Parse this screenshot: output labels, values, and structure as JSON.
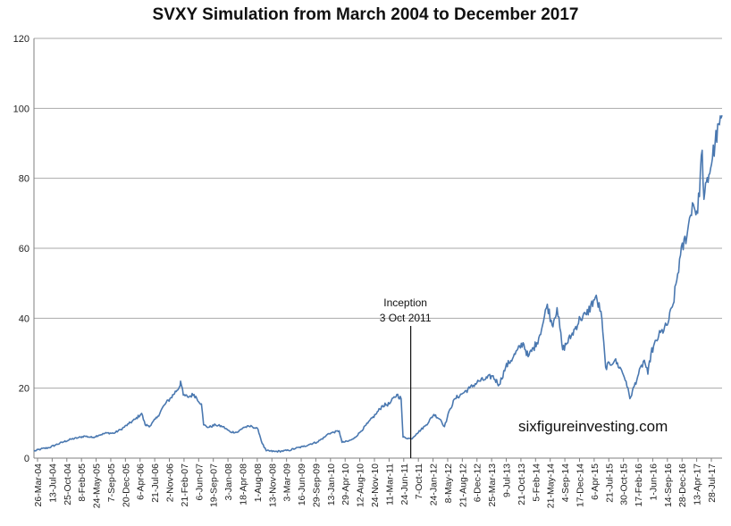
{
  "chart_data": {
    "type": "line",
    "title": "SVXY Simulation from March 2004 to December 2017",
    "xlabel": "",
    "ylabel": "",
    "ylim": [
      0,
      120
    ],
    "yticks": [
      0,
      20,
      40,
      60,
      80,
      100,
      120
    ],
    "grid": "horizontal",
    "line_color": "#4a78b0",
    "x_tick_labels": [
      "26-Mar-04",
      "13-Jul-04",
      "25-Oct-04",
      "8-Feb-05",
      "24-May-05",
      "7-Sep-05",
      "20-Dec-05",
      "6-Apr-06",
      "21-Jul-06",
      "2-Nov-06",
      "21-Feb-07",
      "6-Jun-07",
      "19-Sep-07",
      "3-Jan-08",
      "18-Apr-08",
      "1-Aug-08",
      "13-Nov-08",
      "3-Mar-09",
      "16-Jun-09",
      "29-Sep-09",
      "13-Jan-10",
      "29-Apr-10",
      "12-Aug-10",
      "24-Nov-10",
      "11-Mar-11",
      "24-Jun-11",
      "7-Oct-11",
      "24-Jan-12",
      "8-May-12",
      "21-Aug-12",
      "6-Dec-12",
      "25-Mar-13",
      "9-Jul-13",
      "21-Oct-13",
      "5-Feb-14",
      "21-May-14",
      "4-Sep-14",
      "17-Dec-14",
      "6-Apr-15",
      "21-Jul-15",
      "30-Oct-15",
      "17-Feb-16",
      "1-Jun-16",
      "14-Sep-16",
      "28-Dec-16",
      "13-Apr-17",
      "28-Jul-17"
    ],
    "series": [
      {
        "x": [
          "2004-03-26",
          "2004-05-15",
          "2004-07-13",
          "2004-09-01",
          "2004-10-25",
          "2004-12-20",
          "2005-02-08",
          "2005-04-01",
          "2005-05-24",
          "2005-07-15",
          "2005-09-07",
          "2005-10-28",
          "2005-12-20",
          "2006-02-15",
          "2006-04-06",
          "2006-05-20",
          "2006-06-15",
          "2006-07-21",
          "2006-09-15",
          "2006-11-02",
          "2006-12-20",
          "2007-02-21",
          "2007-02-28",
          "2007-03-20",
          "2007-04-20",
          "2007-06-06",
          "2007-07-30",
          "2007-08-15",
          "2007-09-19",
          "2007-11-10",
          "2008-01-03",
          "2008-02-25",
          "2008-04-18",
          "2008-06-01",
          "2008-08-01",
          "2008-09-15",
          "2008-10-15",
          "2008-11-13",
          "2009-01-15",
          "2009-03-03",
          "2009-04-25",
          "2009-06-16",
          "2009-08-10",
          "2009-09-29",
          "2009-11-20",
          "2010-01-13",
          "2010-02-10",
          "2010-04-29",
          "2010-05-20",
          "2010-07-01",
          "2010-08-12",
          "2010-10-01",
          "2010-11-24",
          "2011-01-20",
          "2011-03-11",
          "2011-04-30",
          "2011-06-24",
          "2011-07-25",
          "2011-08-08",
          "2011-10-07",
          "2011-11-15",
          "2012-01-24",
          "2012-03-20",
          "2012-05-08",
          "2012-06-05",
          "2012-07-15",
          "2012-08-21",
          "2012-10-15",
          "2012-12-06",
          "2013-02-10",
          "2013-03-25",
          "2013-05-20",
          "2013-07-09",
          "2013-08-25",
          "2013-10-21",
          "2013-12-30",
          "2014-02-05",
          "2014-04-10",
          "2014-05-21",
          "2014-06-25",
          "2014-07-30",
          "2014-09-04",
          "2014-10-15",
          "2014-12-17",
          "2015-02-20",
          "2015-04-06",
          "2015-06-10",
          "2015-07-21",
          "2015-08-24",
          "2015-10-30",
          "2015-12-20",
          "2016-01-20",
          "2016-02-17",
          "2016-04-20",
          "2016-06-01",
          "2016-06-27",
          "2016-07-20",
          "2016-09-14",
          "2016-11-15",
          "2016-12-28",
          "2017-02-20",
          "2017-04-13",
          "2017-05-18",
          "2017-06-25",
          "2017-07-28",
          "2017-08-10",
          "2017-09-15",
          "2017-10-30",
          "2017-12-20"
        ],
        "y": [
          2,
          2.6,
          3,
          3.8,
          4.6,
          5.4,
          5.8,
          6.3,
          5.9,
          6.6,
          7.2,
          7.1,
          8.2,
          9.8,
          11.2,
          12.8,
          9.5,
          9.2,
          12,
          15.2,
          17.3,
          20.5,
          22,
          18,
          17.5,
          18.2,
          15.5,
          9.5,
          8.8,
          9.5,
          9,
          7.5,
          7.4,
          8.8,
          9.1,
          8.2,
          4.2,
          2.1,
          1.9,
          2,
          2.2,
          2.8,
          3.3,
          4,
          4.6,
          6,
          7,
          7.8,
          4.5,
          4.8,
          5.5,
          7.5,
          10,
          12.5,
          15,
          15.5,
          18.2,
          17,
          6,
          5.5,
          7,
          9.5,
          12.5,
          11,
          9,
          14,
          17,
          18.5,
          20,
          22,
          22.5,
          23.5,
          21,
          26,
          29,
          33,
          29,
          33,
          38,
          44,
          38,
          43,
          31,
          35,
          40,
          41,
          46,
          42,
          26,
          28,
          25,
          22,
          17,
          24,
          28,
          24,
          30,
          35,
          38,
          44,
          58,
          65,
          73,
          70,
          88,
          74,
          81,
          90,
          98
        ]
      }
    ],
    "annotations": [
      {
        "line1": "Inception",
        "line2": "3 Oct 2011",
        "x": "2011-10-03"
      }
    ],
    "watermark": "sixfigureinvesting.com"
  }
}
